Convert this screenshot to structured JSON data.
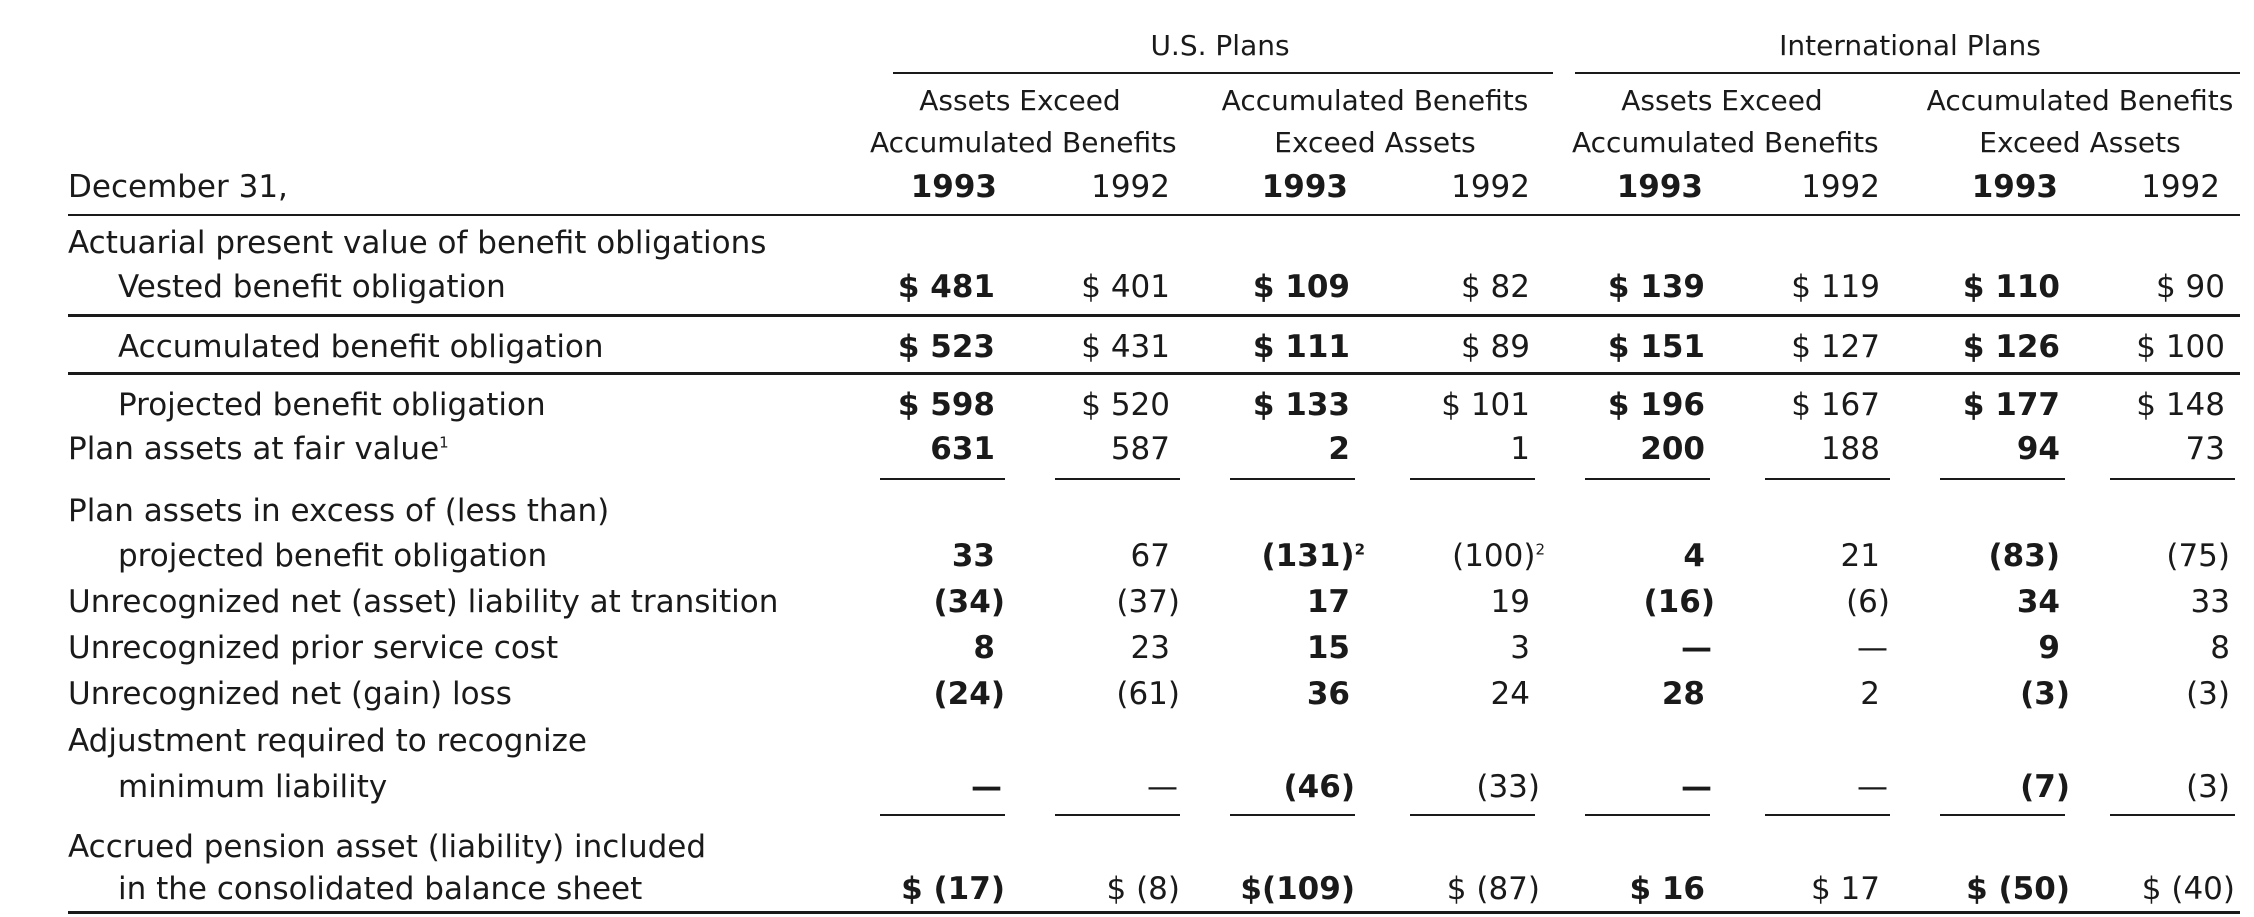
{
  "groups": {
    "us": "U.S. Plans",
    "intl": "International Plans",
    "sub_assets": [
      "Assets Exceed",
      "Accumulated Benefits"
    ],
    "sub_accum": [
      "Accumulated Benefits",
      "Exceed Assets"
    ]
  },
  "date_label": "December 31,",
  "years": [
    "1993",
    "1992"
  ],
  "rows": [
    {
      "label": "Actuarial present value of benefit obligations"
    },
    {
      "label": "Vested benefit obligation",
      "v": [
        "$ 481",
        "$ 401",
        "$ 109",
        "$  82",
        "$ 139",
        "$ 119",
        "$ 110",
        "$  90"
      ]
    },
    {
      "label": "Accumulated benefit obligation",
      "v": [
        "$ 523",
        "$ 431",
        "$ 111",
        "$  89",
        "$ 151",
        "$ 127",
        "$ 126",
        "$ 100"
      ]
    },
    {
      "label": "Projected benefit obligation",
      "v": [
        "$ 598",
        "$ 520",
        "$ 133",
        "$ 101",
        "$ 196",
        "$ 167",
        "$ 177",
        "$ 148"
      ]
    },
    {
      "label": "Plan assets at fair value",
      "sup": "1",
      "v": [
        "631",
        "587",
        "2",
        "1",
        "200",
        "188",
        "94",
        "73"
      ]
    },
    {
      "label": "Plan assets in excess of (less than)"
    },
    {
      "label": "projected benefit obligation",
      "v": [
        "33",
        "67",
        "(131)",
        "(100)",
        "4",
        "21",
        "(83)",
        "(75)"
      ],
      "v_sup": [
        "",
        "",
        "2",
        "2",
        "",
        "",
        "",
        ""
      ]
    },
    {
      "label": "Unrecognized net (asset) liability at transition",
      "v": [
        "(34)",
        "(37)",
        "17",
        "19",
        "(16)",
        "(6)",
        "34",
        "33"
      ]
    },
    {
      "label": "Unrecognized prior service cost",
      "v": [
        "8",
        "23",
        "15",
        "3",
        "—",
        "—",
        "9",
        "8"
      ]
    },
    {
      "label": "Unrecognized net (gain) loss",
      "v": [
        "(24)",
        "(61)",
        "36",
        "24",
        "28",
        "2",
        "(3)",
        "(3)"
      ]
    },
    {
      "label": "Adjustment required to recognize"
    },
    {
      "label": "minimum liability",
      "v": [
        "—",
        "—",
        "(46)",
        "(33)",
        "—",
        "—",
        "(7)",
        "(3)"
      ]
    },
    {
      "label": "Accrued pension asset (liability) included"
    },
    {
      "label": "in the consolidated balance sheet",
      "v": [
        "$ (17)",
        "$  (8)",
        "$(109)",
        "$ (87)",
        "$  16",
        "$  17",
        "$ (50)",
        "$ (40)"
      ]
    }
  ]
}
